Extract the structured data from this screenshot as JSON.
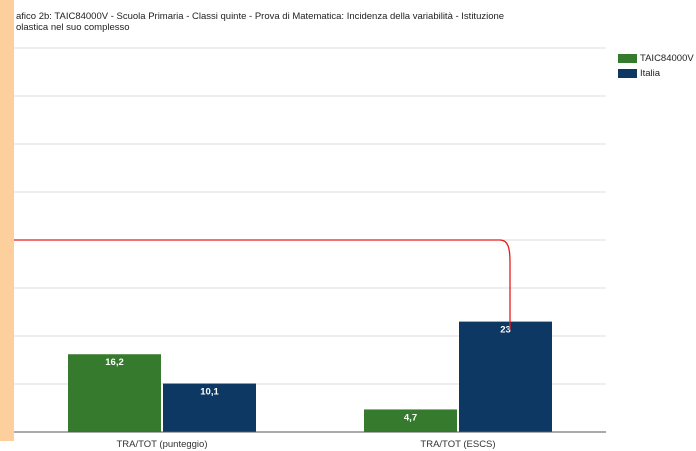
{
  "title": "afico 2b: TAIC84000V - Scuola Primaria - Classi quinte - Prova di Matematica: Incidenza della variabilità - Istituzione",
  "title_line2": "olastica nel suo complesso",
  "colors": {
    "taic": "#367b2d",
    "italia": "#0e3864",
    "reference_line": "#e51c1c",
    "gridline": "#dcdcdc",
    "axis": "#555555",
    "left_band": "#fccf9c"
  },
  "chart_data": {
    "type": "bar",
    "categories": [
      "TRA/TOT (punteggio)",
      "TRA/TOT (ESCS)"
    ],
    "series": [
      {
        "name": "TAIC84000V",
        "values": [
          16.2,
          4.7
        ],
        "labels": [
          "16,2",
          "4,7"
        ]
      },
      {
        "name": "Italia",
        "values": [
          10.1,
          23
        ],
        "labels": [
          "10,1",
          "23"
        ]
      }
    ],
    "ylim": [
      0,
      80
    ],
    "grid": true,
    "legend": "top-right",
    "reference_line": {
      "value": 40
    }
  }
}
